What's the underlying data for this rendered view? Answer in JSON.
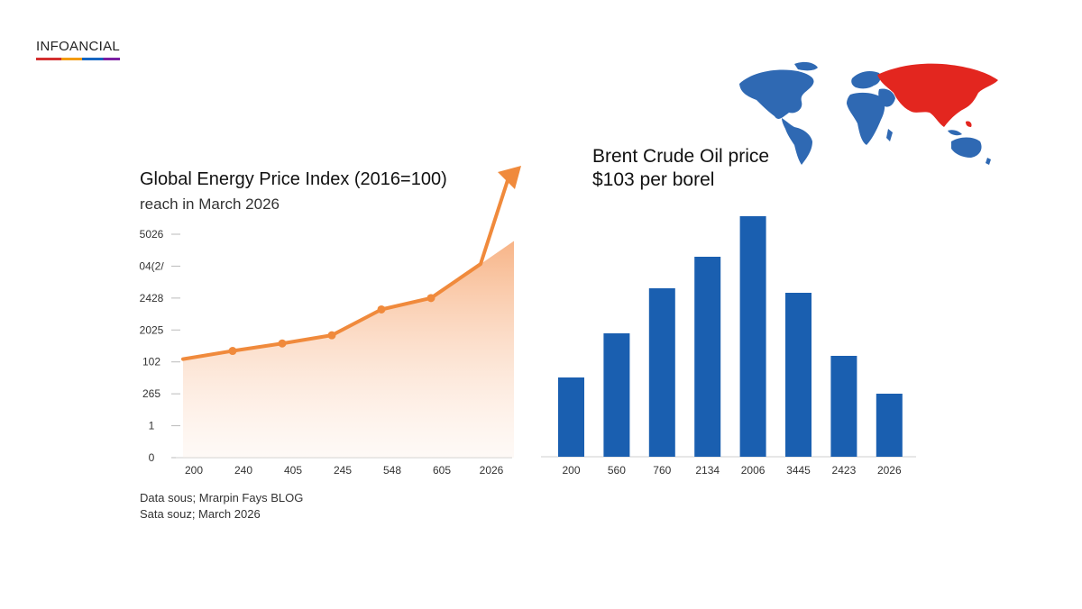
{
  "brand": {
    "name": "INFOANCIAL"
  },
  "colors": {
    "line": "#f08a3c",
    "bar": "#1a5fb0",
    "map_blue": "#2f69b3",
    "map_red": "#e3261f"
  },
  "icons": {
    "map": "world-map-icon",
    "arrow": "arrow-up-right-icon"
  },
  "chart_data": [
    {
      "type": "area",
      "title": "Global Energy Price Index (2016=100)",
      "subtitle": "reach in March 2026",
      "y_ticks": [
        "5026",
        "04(2/",
        "2428",
        "2025",
        "102",
        "265",
        "1",
        "0"
      ],
      "categories": [
        "200",
        "240",
        "405",
        "245",
        "548",
        "605",
        "2026"
      ],
      "values": [
        3.97,
        4.3,
        4.6,
        4.93,
        5.97,
        6.43,
        7.8
      ],
      "ylim": [
        0,
        9
      ],
      "grid": false,
      "source_lines": [
        "Data sous; Mrarpin Fays BLOG",
        "Sata souz; March 2026"
      ]
    },
    {
      "type": "bar",
      "title": "Brent Crude Oil price",
      "subtitle": "$103 per borel",
      "categories": [
        "200",
        "560",
        "760",
        "2134",
        "2006",
        "3445",
        "2423",
        "2026"
      ],
      "values": [
        88,
        137,
        187,
        222,
        267,
        182,
        112,
        70
      ],
      "ylim": [
        0,
        270
      ],
      "grid": false
    }
  ]
}
